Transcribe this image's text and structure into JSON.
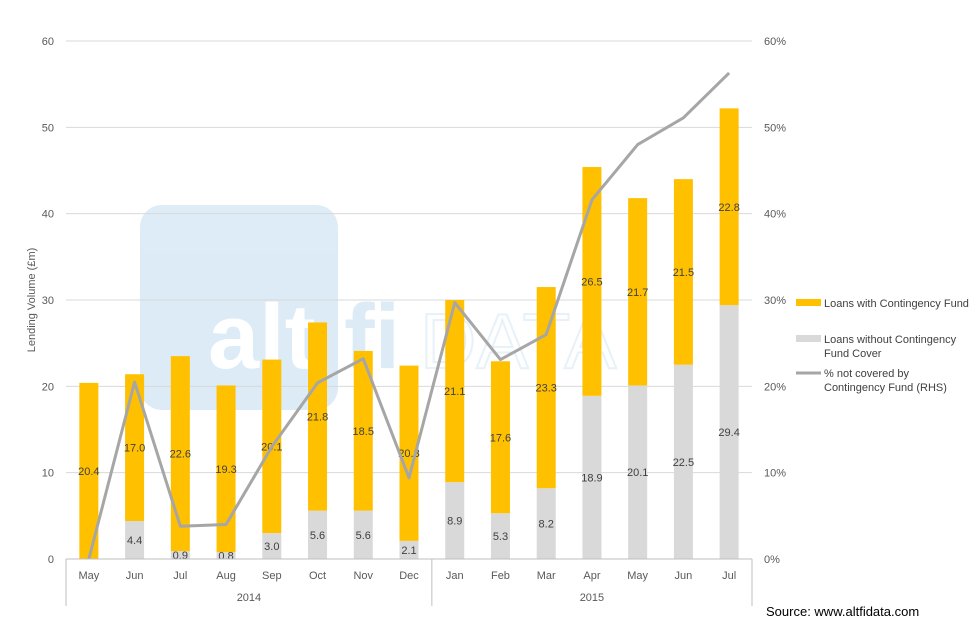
{
  "chart_data": {
    "type": "bar",
    "stacked": true,
    "categories": [
      "May",
      "Jun",
      "Jul",
      "Aug",
      "Sep",
      "Oct",
      "Nov",
      "Dec",
      "Jan",
      "Feb",
      "Mar",
      "Apr",
      "May",
      "Jun",
      "Jul"
    ],
    "year_groups": [
      {
        "label": "2014",
        "count": 8
      },
      {
        "label": "2015",
        "count": 7
      }
    ],
    "series": [
      {
        "name": "Loans without Contingency Fund Cover",
        "type": "bar",
        "axis": "left",
        "color": "#d9d9d9",
        "values": [
          0,
          4.4,
          0.9,
          0.8,
          3.0,
          5.6,
          5.6,
          2.1,
          8.9,
          5.3,
          8.2,
          18.9,
          20.1,
          22.5,
          29.4
        ],
        "labels": [
          "",
          "4.4",
          "0.9",
          "0.8",
          "3.0",
          "5.6",
          "5.6",
          "2.1",
          "8.9",
          "5.3",
          "8.2",
          "18.9",
          "20.1",
          "22.5",
          "29.4"
        ]
      },
      {
        "name": "Loans with Contingency Fund",
        "type": "bar",
        "axis": "left",
        "color": "#ffc000",
        "values": [
          20.4,
          17.0,
          22.6,
          19.3,
          20.1,
          21.8,
          18.5,
          20.3,
          21.1,
          17.6,
          23.3,
          26.5,
          21.7,
          21.5,
          22.8
        ],
        "labels": [
          "20.4",
          "17.0",
          "22.6",
          "19.3",
          "20.1",
          "21.8",
          "18.5",
          "20.3",
          "21.1",
          "17.6",
          "23.3",
          "26.5",
          "21.7",
          "21.5",
          "22.8"
        ]
      },
      {
        "name": "% not covered by Contingency Fund (RHS)",
        "type": "line",
        "axis": "right",
        "color": "#a6a6a6",
        "values": [
          0.0,
          20.5,
          3.8,
          4.0,
          13.0,
          20.4,
          23.2,
          9.4,
          29.7,
          23.1,
          26.0,
          41.6,
          48.0,
          51.1,
          56.3
        ]
      }
    ],
    "ylabel": "Lending Volume (£m)",
    "xlabel": "",
    "ylim": [
      0,
      60
    ],
    "yticks": [
      "0",
      "10",
      "20",
      "30",
      "40",
      "50",
      "60"
    ],
    "y2lim": [
      0,
      60
    ],
    "y2ticks": [
      "0%",
      "10%",
      "20%",
      "30%",
      "40%",
      "50%",
      "60%"
    ],
    "legend_position": "right",
    "legend": [
      {
        "lines": [
          "Loans with Contingency Fund"
        ],
        "kind": "box",
        "color": "#ffc000"
      },
      {
        "lines": [
          "Loans without Contingency",
          "Fund Cover"
        ],
        "kind": "box",
        "color": "#d9d9d9"
      },
      {
        "lines": [
          "% not covered by",
          "Contingency Fund (RHS)"
        ],
        "kind": "line",
        "color": "#a6a6a6"
      }
    ],
    "grid": true,
    "watermark": "altfi DATA"
  },
  "source": "Source: www.altfidata.com"
}
